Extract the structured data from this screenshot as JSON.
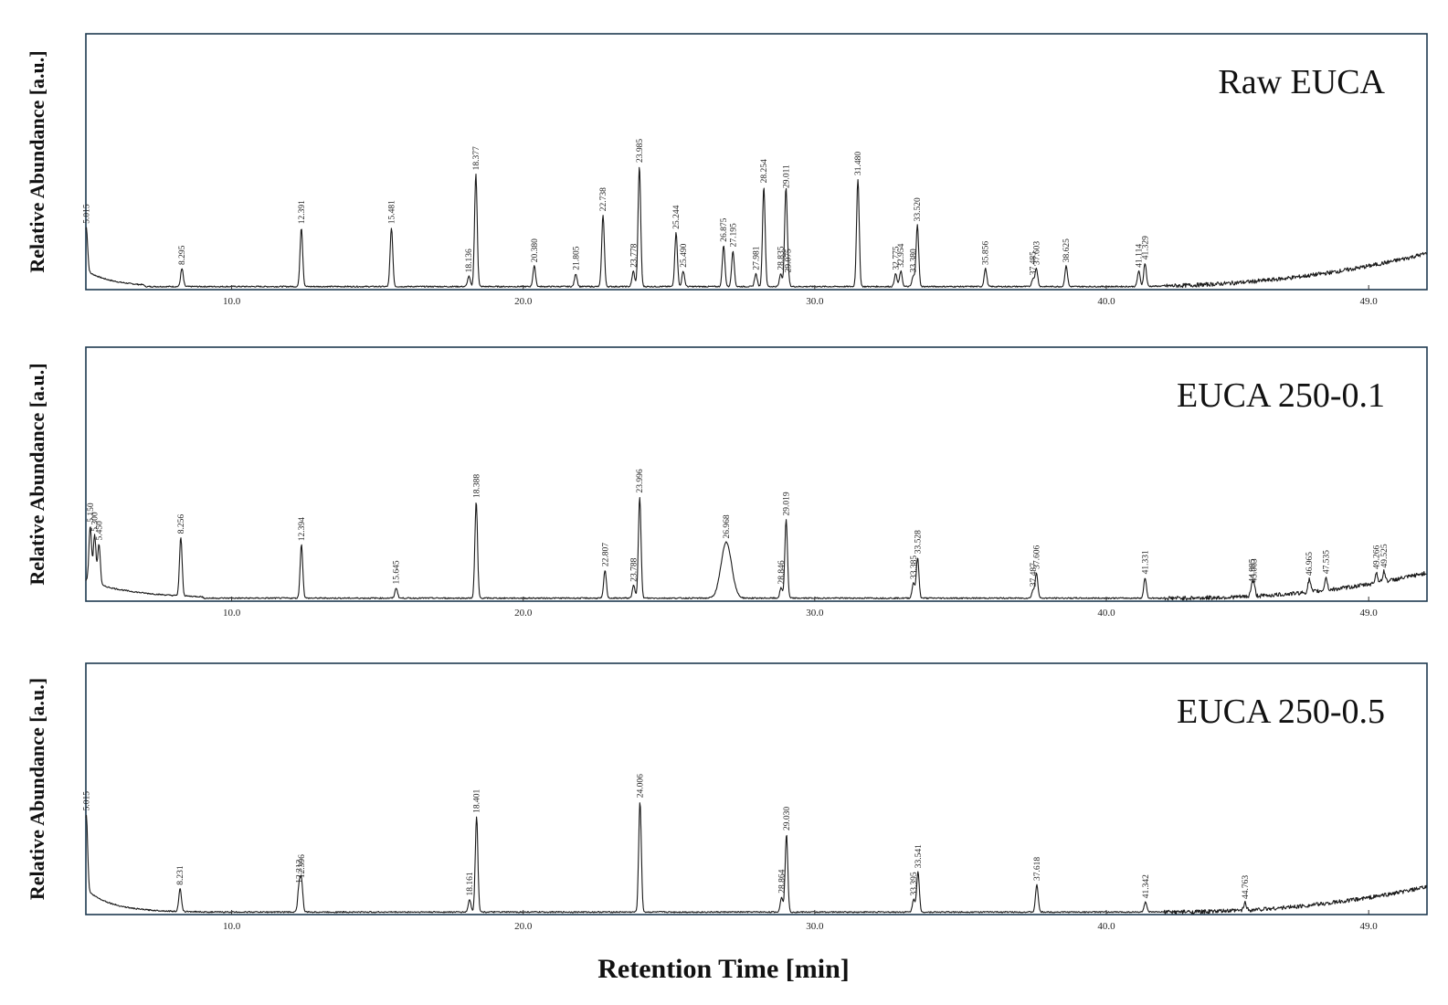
{
  "chart_data": [
    {
      "type": "line",
      "title": "Raw EUCA",
      "ylabel": "Relative Abundance [a.u.]",
      "xlim": [
        5.0,
        51.0
      ],
      "ylim": [
        0,
        100
      ],
      "x_ticks": [
        {
          "value": 10.0,
          "label": "10.0"
        },
        {
          "value": 20.0,
          "label": "20.0"
        },
        {
          "value": 30.0,
          "label": "30.0"
        },
        {
          "value": 40.0,
          "label": "40.0"
        },
        {
          "value": 49.0,
          "label": "49.0"
        }
      ],
      "peaks": [
        {
          "rt": 5.015,
          "label": "5.015",
          "height": 17
        },
        {
          "rt": 8.295,
          "label": "8.295",
          "height": 7
        },
        {
          "rt": 12.391,
          "label": "12.391",
          "height": 23
        },
        {
          "rt": 15.481,
          "label": "15.481",
          "height": 23
        },
        {
          "rt": 18.136,
          "label": "18.136",
          "height": 4
        },
        {
          "rt": 18.377,
          "label": "18.377",
          "height": 44
        },
        {
          "rt": 20.38,
          "label": "20.380",
          "height": 8
        },
        {
          "rt": 21.805,
          "label": "21.805",
          "height": 5
        },
        {
          "rt": 22.738,
          "label": "22.738",
          "height": 28
        },
        {
          "rt": 23.778,
          "label": "23.778",
          "height": 6
        },
        {
          "rt": 23.985,
          "label": "23.985",
          "height": 47
        },
        {
          "rt": 25.244,
          "label": "25.244",
          "height": 21
        },
        {
          "rt": 25.49,
          "label": "25.490",
          "height": 6
        },
        {
          "rt": 26.875,
          "label": "26.875",
          "height": 16
        },
        {
          "rt": 27.195,
          "label": "27.195",
          "height": 14
        },
        {
          "rt": 27.981,
          "label": "27.981",
          "height": 5
        },
        {
          "rt": 28.254,
          "label": "28.254",
          "height": 39
        },
        {
          "rt": 28.835,
          "label": "28.835",
          "height": 5
        },
        {
          "rt": 29.011,
          "label": "29.011",
          "height": 37
        },
        {
          "rt": 29.075,
          "label": "29.075",
          "height": 4
        },
        {
          "rt": 31.48,
          "label": "31.480",
          "height": 42
        },
        {
          "rt": 32.775,
          "label": "32.775",
          "height": 5
        },
        {
          "rt": 32.954,
          "label": "32.954",
          "height": 6
        },
        {
          "rt": 33.38,
          "label": "33.380",
          "height": 4
        },
        {
          "rt": 33.52,
          "label": "33.520",
          "height": 24
        },
        {
          "rt": 35.856,
          "label": "35.856",
          "height": 7
        },
        {
          "rt": 37.485,
          "label": "37.485",
          "height": 3
        },
        {
          "rt": 37.603,
          "label": "37.603",
          "height": 7
        },
        {
          "rt": 38.625,
          "label": "38.625",
          "height": 8
        },
        {
          "rt": 41.114,
          "label": "41.114",
          "height": 6
        },
        {
          "rt": 41.329,
          "label": "41.329",
          "height": 9
        }
      ]
    },
    {
      "type": "line",
      "title": "EUCA 250-0.1",
      "ylabel": "Relative Abundance [a.u.]",
      "xlim": [
        5.0,
        51.0
      ],
      "ylim": [
        0,
        100
      ],
      "x_ticks": [
        {
          "value": 10.0,
          "label": "10.0"
        },
        {
          "value": 20.0,
          "label": "20.0"
        },
        {
          "value": 30.0,
          "label": "30.0"
        },
        {
          "value": 40.0,
          "label": "40.0"
        },
        {
          "value": 49.0,
          "label": "49.0"
        }
      ],
      "peaks": [
        {
          "rt": 5.15,
          "label": "5.150",
          "height": 22
        },
        {
          "rt": 5.3,
          "label": "5.300",
          "height": 19
        },
        {
          "rt": 5.45,
          "label": "5.450",
          "height": 16
        },
        {
          "rt": 8.256,
          "label": "8.256",
          "height": 23
        },
        {
          "rt": 12.394,
          "label": "12.394",
          "height": 21
        },
        {
          "rt": 15.645,
          "label": "15.645",
          "height": 4
        },
        {
          "rt": 18.388,
          "label": "18.388",
          "height": 38
        },
        {
          "rt": 22.807,
          "label": "22.807",
          "height": 11
        },
        {
          "rt": 23.788,
          "label": "23.788",
          "height": 5
        },
        {
          "rt": 23.996,
          "label": "23.996",
          "height": 40
        },
        {
          "rt": 26.968,
          "label": "26.968",
          "height": 22
        },
        {
          "rt": 28.846,
          "label": "28.846",
          "height": 4
        },
        {
          "rt": 29.019,
          "label": "29.019",
          "height": 31
        },
        {
          "rt": 33.385,
          "label": "33.385",
          "height": 6
        },
        {
          "rt": 33.528,
          "label": "33.528",
          "height": 16
        },
        {
          "rt": 37.487,
          "label": "37.487",
          "height": 3
        },
        {
          "rt": 37.606,
          "label": "37.606",
          "height": 10
        },
        {
          "rt": 41.331,
          "label": "41.331",
          "height": 8
        },
        {
          "rt": 44.995,
          "label": "44.995",
          "height": 4
        },
        {
          "rt": 45.063,
          "label": "45.063",
          "height": 4
        },
        {
          "rt": 46.965,
          "label": "46.965",
          "height": 5
        },
        {
          "rt": 47.535,
          "label": "47.535",
          "height": 5
        },
        {
          "rt": 49.266,
          "label": "49.266",
          "height": 4
        },
        {
          "rt": 49.525,
          "label": "49.525",
          "height": 4
        }
      ]
    },
    {
      "type": "line",
      "title": "EUCA 250-0.5",
      "ylabel": "Relative Abundance [a.u.]",
      "xlabel": "Retention Time [min]",
      "xlim": [
        5.0,
        51.0
      ],
      "ylim": [
        0,
        100
      ],
      "x_ticks": [
        {
          "value": 10.0,
          "label": "10.0"
        },
        {
          "value": 20.0,
          "label": "20.0"
        },
        {
          "value": 30.0,
          "label": "30.0"
        },
        {
          "value": 40.0,
          "label": "40.0"
        },
        {
          "value": 49.0,
          "label": "49.0"
        }
      ],
      "peaks": [
        {
          "rt": 5.015,
          "label": "5.015",
          "height": 30
        },
        {
          "rt": 8.231,
          "label": "8.231",
          "height": 9
        },
        {
          "rt": 12.312,
          "label": "12.312",
          "height": 10
        },
        {
          "rt": 12.396,
          "label": "12.396",
          "height": 12
        },
        {
          "rt": 18.161,
          "label": "18.161",
          "height": 5
        },
        {
          "rt": 18.401,
          "label": "18.401",
          "height": 38
        },
        {
          "rt": 24.006,
          "label": "24.006",
          "height": 44
        },
        {
          "rt": 28.864,
          "label": "28.864",
          "height": 6
        },
        {
          "rt": 29.03,
          "label": "29.030",
          "height": 31
        },
        {
          "rt": 33.395,
          "label": "33.395",
          "height": 5
        },
        {
          "rt": 33.541,
          "label": "33.541",
          "height": 16
        },
        {
          "rt": 37.618,
          "label": "37.618",
          "height": 11
        },
        {
          "rt": 41.342,
          "label": "41.342",
          "height": 4
        },
        {
          "rt": 44.763,
          "label": "44.763",
          "height": 3
        }
      ]
    }
  ]
}
